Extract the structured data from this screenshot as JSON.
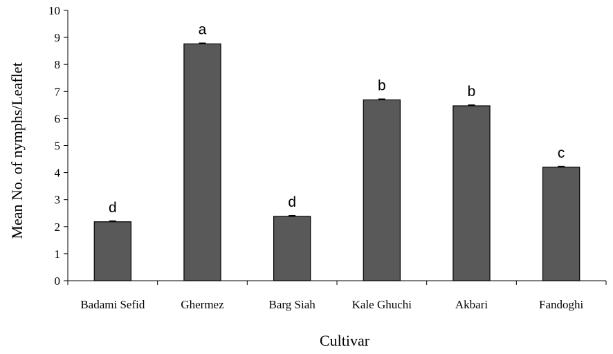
{
  "chart_data": {
    "type": "bar",
    "title": "",
    "xlabel": "Cultivar",
    "ylabel": "Mean No. of nymphs/Leaflet",
    "ylim": [
      0,
      10
    ],
    "yticks": [
      "0",
      "1",
      "2",
      "3",
      "4",
      "5",
      "6",
      "7",
      "8",
      "9",
      "10"
    ],
    "categories": [
      "Badami Sefid",
      "Ghermez",
      "Barg Siah",
      "Kale Ghuchi",
      "Akbari",
      "Fandoghi"
    ],
    "values": [
      2.18,
      8.76,
      2.38,
      6.69,
      6.47,
      4.2
    ],
    "error": [
      0.03,
      0.03,
      0.03,
      0.03,
      0.03,
      0.03
    ],
    "significance_letters": [
      "d",
      "a",
      "d",
      "b",
      "b",
      "c"
    ],
    "bar_color": "#595959",
    "bar_edge_color": "#000000",
    "grid": false,
    "legend": "none"
  }
}
